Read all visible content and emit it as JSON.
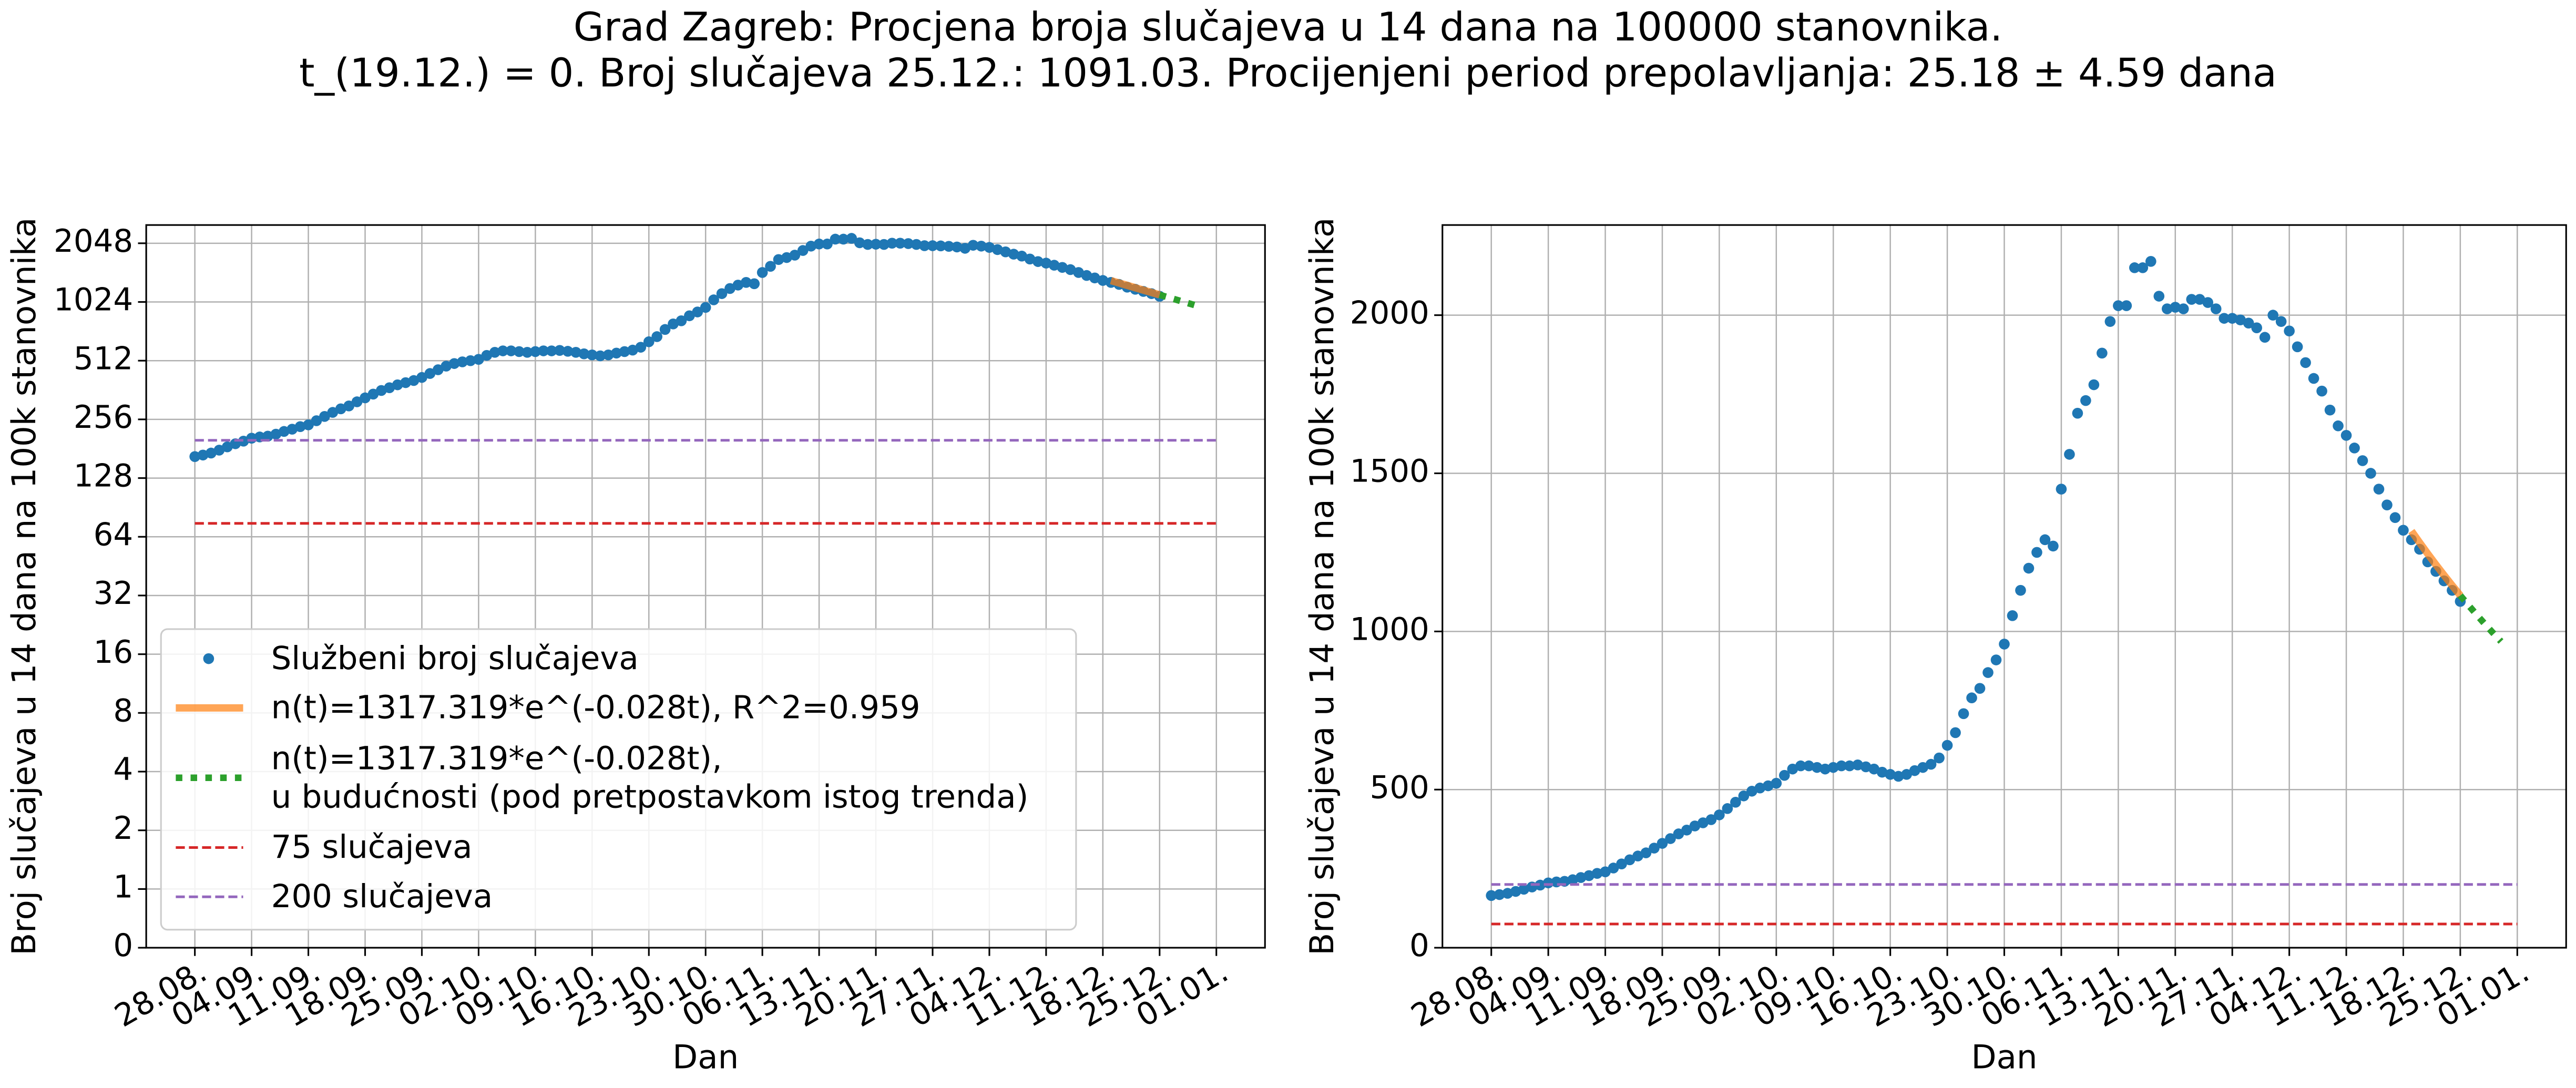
{
  "title": "Grad Zagreb: Procjena broja slučajeva u 14 dana na 100000 stanovnika.",
  "subtitle": "t_(19.12.) = 0. Broj slučajeva 25.12.: 1091.03. Procijenjeni period prepolavljanja: 25.18 ± 4.59 dana",
  "chart_data": [
    {
      "type": "line",
      "yscale": "symlog",
      "logbase": 2,
      "linthresh": 1,
      "xlabel": "Dan",
      "ylabel": "Broj slučajeva u 14 dana na 100k stanovnika",
      "xlim": [
        "22.08.",
        "07.01."
      ],
      "ylim": [
        0,
        2540
      ],
      "xticks": [
        "28.08.",
        "04.09.",
        "11.09.",
        "18.09.",
        "25.09.",
        "02.10.",
        "09.10.",
        "16.10.",
        "23.10.",
        "30.10.",
        "06.11.",
        "13.11.",
        "20.11.",
        "27.11.",
        "04.12.",
        "11.12.",
        "18.12.",
        "25.12.",
        "01.01."
      ],
      "yticks": [
        0,
        1,
        2,
        4,
        8,
        16,
        32,
        64,
        128,
        256,
        512,
        1024,
        2048
      ],
      "grid": true,
      "legend": "lower left",
      "series": [
        {
          "name": "Službeni broj slučajeva",
          "color": "#1f77b4",
          "style": "points",
          "x": [
            "28.08.",
            "29.08.",
            "30.08.",
            "31.08.",
            "01.09.",
            "02.09.",
            "03.09.",
            "04.09.",
            "05.09.",
            "06.09.",
            "07.09.",
            "08.09.",
            "09.09.",
            "10.09.",
            "11.09.",
            "12.09.",
            "13.09.",
            "14.09.",
            "15.09.",
            "16.09.",
            "17.09.",
            "18.09.",
            "19.09.",
            "20.09.",
            "21.09.",
            "22.09.",
            "23.09.",
            "24.09.",
            "25.09.",
            "26.09.",
            "27.09.",
            "28.09.",
            "29.09.",
            "30.09.",
            "01.10.",
            "02.10.",
            "03.10.",
            "04.10.",
            "05.10.",
            "06.10.",
            "07.10.",
            "08.10.",
            "09.10.",
            "10.10.",
            "11.10.",
            "12.10.",
            "13.10.",
            "14.10.",
            "15.10.",
            "16.10.",
            "17.10.",
            "18.10.",
            "19.10.",
            "20.10.",
            "21.10.",
            "22.10.",
            "23.10.",
            "24.10.",
            "25.10.",
            "26.10.",
            "27.10.",
            "28.10.",
            "29.10.",
            "30.10.",
            "31.10.",
            "01.11.",
            "02.11.",
            "03.11.",
            "04.11.",
            "05.11.",
            "06.11.",
            "07.11.",
            "08.11.",
            "09.11.",
            "10.11.",
            "11.11.",
            "12.11.",
            "13.11.",
            "14.11.",
            "15.11.",
            "16.11.",
            "17.11.",
            "18.11.",
            "19.11.",
            "20.11.",
            "21.11.",
            "22.11.",
            "23.11.",
            "24.11.",
            "25.11.",
            "26.11.",
            "27.11.",
            "28.11.",
            "29.11.",
            "30.11.",
            "01.12.",
            "02.12.",
            "03.12.",
            "04.12.",
            "05.12.",
            "06.12.",
            "07.12.",
            "08.12.",
            "09.12.",
            "10.12.",
            "11.12.",
            "12.12.",
            "13.12.",
            "14.12.",
            "15.12.",
            "16.12.",
            "17.12.",
            "18.12.",
            "19.12.",
            "20.12.",
            "21.12.",
            "22.12.",
            "23.12.",
            "24.12.",
            "25.12."
          ],
          "values": [
            165,
            168,
            172,
            178,
            185,
            192,
            198,
            205,
            208,
            210,
            215,
            222,
            228,
            235,
            240,
            252,
            265,
            278,
            290,
            300,
            315,
            330,
            345,
            360,
            372,
            385,
            395,
            405,
            420,
            440,
            460,
            480,
            495,
            505,
            512,
            520,
            545,
            565,
            575,
            575,
            570,
            565,
            570,
            575,
            575,
            578,
            572,
            565,
            555,
            548,
            542,
            548,
            560,
            570,
            580,
            600,
            640,
            680,
            740,
            790,
            820,
            870,
            910,
            960,
            1050,
            1130,
            1200,
            1250,
            1290,
            1270,
            1450,
            1560,
            1690,
            1730,
            1780,
            1880,
            1980,
            2030,
            2030,
            2150,
            2150,
            2170,
            2060,
            2020,
            2025,
            2020,
            2050,
            2050,
            2040,
            2020,
            1990,
            1990,
            1985,
            1975,
            1960,
            1930,
            2000,
            1980,
            1950,
            1900,
            1850,
            1800,
            1760,
            1700,
            1650,
            1620,
            1580,
            1540,
            1500,
            1450,
            1400,
            1360,
            1320,
            1290,
            1260,
            1220,
            1190,
            1160,
            1130,
            1095
          ]
        },
        {
          "name": "n(t)=1317.319*e^(-0.028t), R^2=0.959",
          "color": "#ff7f0e",
          "style": "thick",
          "x": [
            "19.12.",
            "20.12.",
            "21.12.",
            "22.12.",
            "23.12.",
            "24.12.",
            "25.12."
          ],
          "values": [
            1317.3,
            1281.0,
            1245.6,
            1211.2,
            1177.8,
            1145.3,
            1113.7
          ]
        },
        {
          "name": "n(t)=1317.319*e^(-0.028t),\nu budućnosti (pod pretpostavkom istog trenda)",
          "color": "#2ca02c",
          "style": "dotted",
          "x": [
            "25.12.",
            "26.12.",
            "27.12.",
            "28.12.",
            "29.12.",
            "30.12."
          ],
          "values": [
            1113.7,
            1083.0,
            1053.1,
            1024.1,
            995.8,
            968.3
          ]
        },
        {
          "name": "75 slučajeva",
          "color": "#d62728",
          "style": "dashed",
          "x": [
            "28.08.",
            "01.01."
          ],
          "values": [
            75,
            75
          ]
        },
        {
          "name": "200 slučajeva",
          "color": "#9467bd",
          "style": "dashed",
          "x": [
            "28.08.",
            "01.01."
          ],
          "values": [
            200,
            200
          ]
        }
      ]
    },
    {
      "type": "line",
      "xlabel": "Dan",
      "ylabel": "Broj slučajeva u 14 dana na 100k stanovnika",
      "xlim": [
        "22.08.",
        "07.01."
      ],
      "ylim": [
        0,
        2285
      ],
      "xticks": [
        "28.08.",
        "04.09.",
        "11.09.",
        "18.09.",
        "25.09.",
        "02.10.",
        "09.10.",
        "16.10.",
        "23.10.",
        "30.10.",
        "06.11.",
        "13.11.",
        "20.11.",
        "27.11.",
        "04.12.",
        "11.12.",
        "18.12.",
        "25.12.",
        "01.01."
      ],
      "yticks": [
        0,
        500,
        1000,
        1500,
        2000
      ],
      "grid": true,
      "series": [
        {
          "name": "Službeni broj slučajeva",
          "color": "#1f77b4",
          "style": "points",
          "x": [
            "28.08.",
            "29.08.",
            "30.08.",
            "31.08.",
            "01.09.",
            "02.09.",
            "03.09.",
            "04.09.",
            "05.09.",
            "06.09.",
            "07.09.",
            "08.09.",
            "09.09.",
            "10.09.",
            "11.09.",
            "12.09.",
            "13.09.",
            "14.09.",
            "15.09.",
            "16.09.",
            "17.09.",
            "18.09.",
            "19.09.",
            "20.09.",
            "21.09.",
            "22.09.",
            "23.09.",
            "24.09.",
            "25.09.",
            "26.09.",
            "27.09.",
            "28.09.",
            "29.09.",
            "30.09.",
            "01.10.",
            "02.10.",
            "03.10.",
            "04.10.",
            "05.10.",
            "06.10.",
            "07.10.",
            "08.10.",
            "09.10.",
            "10.10.",
            "11.10.",
            "12.10.",
            "13.10.",
            "14.10.",
            "15.10.",
            "16.10.",
            "17.10.",
            "18.10.",
            "19.10.",
            "20.10.",
            "21.10.",
            "22.10.",
            "23.10.",
            "24.10.",
            "25.10.",
            "26.10.",
            "27.10.",
            "28.10.",
            "29.10.",
            "30.10.",
            "31.10.",
            "01.11.",
            "02.11.",
            "03.11.",
            "04.11.",
            "05.11.",
            "06.11.",
            "07.11.",
            "08.11.",
            "09.11.",
            "10.11.",
            "11.11.",
            "12.11.",
            "13.11.",
            "14.11.",
            "15.11.",
            "16.11.",
            "17.11.",
            "18.11.",
            "19.11.",
            "20.11.",
            "21.11.",
            "22.11.",
            "23.11.",
            "24.11.",
            "25.11.",
            "26.11.",
            "27.11.",
            "28.11.",
            "29.11.",
            "30.11.",
            "01.12.",
            "02.12.",
            "03.12.",
            "04.12.",
            "05.12.",
            "06.12.",
            "07.12.",
            "08.12.",
            "09.12.",
            "10.12.",
            "11.12.",
            "12.12.",
            "13.12.",
            "14.12.",
            "15.12.",
            "16.12.",
            "17.12.",
            "18.12.",
            "19.12.",
            "20.12.",
            "21.12.",
            "22.12.",
            "23.12.",
            "24.12.",
            "25.12."
          ],
          "values": [
            165,
            168,
            172,
            178,
            185,
            192,
            198,
            205,
            208,
            210,
            215,
            222,
            228,
            235,
            240,
            252,
            265,
            278,
            290,
            300,
            315,
            330,
            345,
            360,
            372,
            385,
            395,
            405,
            420,
            440,
            460,
            480,
            495,
            505,
            512,
            520,
            545,
            565,
            575,
            575,
            570,
            565,
            570,
            575,
            575,
            578,
            572,
            565,
            555,
            548,
            542,
            548,
            560,
            570,
            580,
            600,
            640,
            680,
            740,
            790,
            820,
            870,
            910,
            960,
            1050,
            1130,
            1200,
            1250,
            1290,
            1270,
            1450,
            1560,
            1690,
            1730,
            1780,
            1880,
            1980,
            2030,
            2030,
            2150,
            2150,
            2170,
            2060,
            2020,
            2025,
            2020,
            2050,
            2050,
            2040,
            2020,
            1990,
            1990,
            1985,
            1975,
            1960,
            1930,
            2000,
            1980,
            1950,
            1900,
            1850,
            1800,
            1760,
            1700,
            1650,
            1620,
            1580,
            1540,
            1500,
            1450,
            1400,
            1360,
            1320,
            1290,
            1260,
            1220,
            1190,
            1160,
            1130,
            1095
          ]
        },
        {
          "name": "n(t)=1317.319*e^(-0.028t), R^2=0.959",
          "color": "#ff7f0e",
          "style": "thick",
          "x": [
            "19.12.",
            "20.12.",
            "21.12.",
            "22.12.",
            "23.12.",
            "24.12.",
            "25.12."
          ],
          "values": [
            1317.3,
            1281.0,
            1245.6,
            1211.2,
            1177.8,
            1145.3,
            1113.7
          ]
        },
        {
          "name": "n(t)=1317.319*e^(-0.028t),\nu budućnosti (pod pretpostavkom istog trenda)",
          "color": "#2ca02c",
          "style": "dotted",
          "x": [
            "25.12.",
            "26.12.",
            "27.12.",
            "28.12.",
            "29.12.",
            "30.12."
          ],
          "values": [
            1113.7,
            1083.0,
            1053.1,
            1024.1,
            995.8,
            968.3
          ]
        },
        {
          "name": "75 slučajeva",
          "color": "#d62728",
          "style": "dashed",
          "x": [
            "28.08.",
            "01.01."
          ],
          "values": [
            75,
            75
          ]
        },
        {
          "name": "200 slučajeva",
          "color": "#9467bd",
          "style": "dashed",
          "x": [
            "28.08.",
            "01.01."
          ],
          "values": [
            200,
            200
          ]
        }
      ]
    }
  ]
}
